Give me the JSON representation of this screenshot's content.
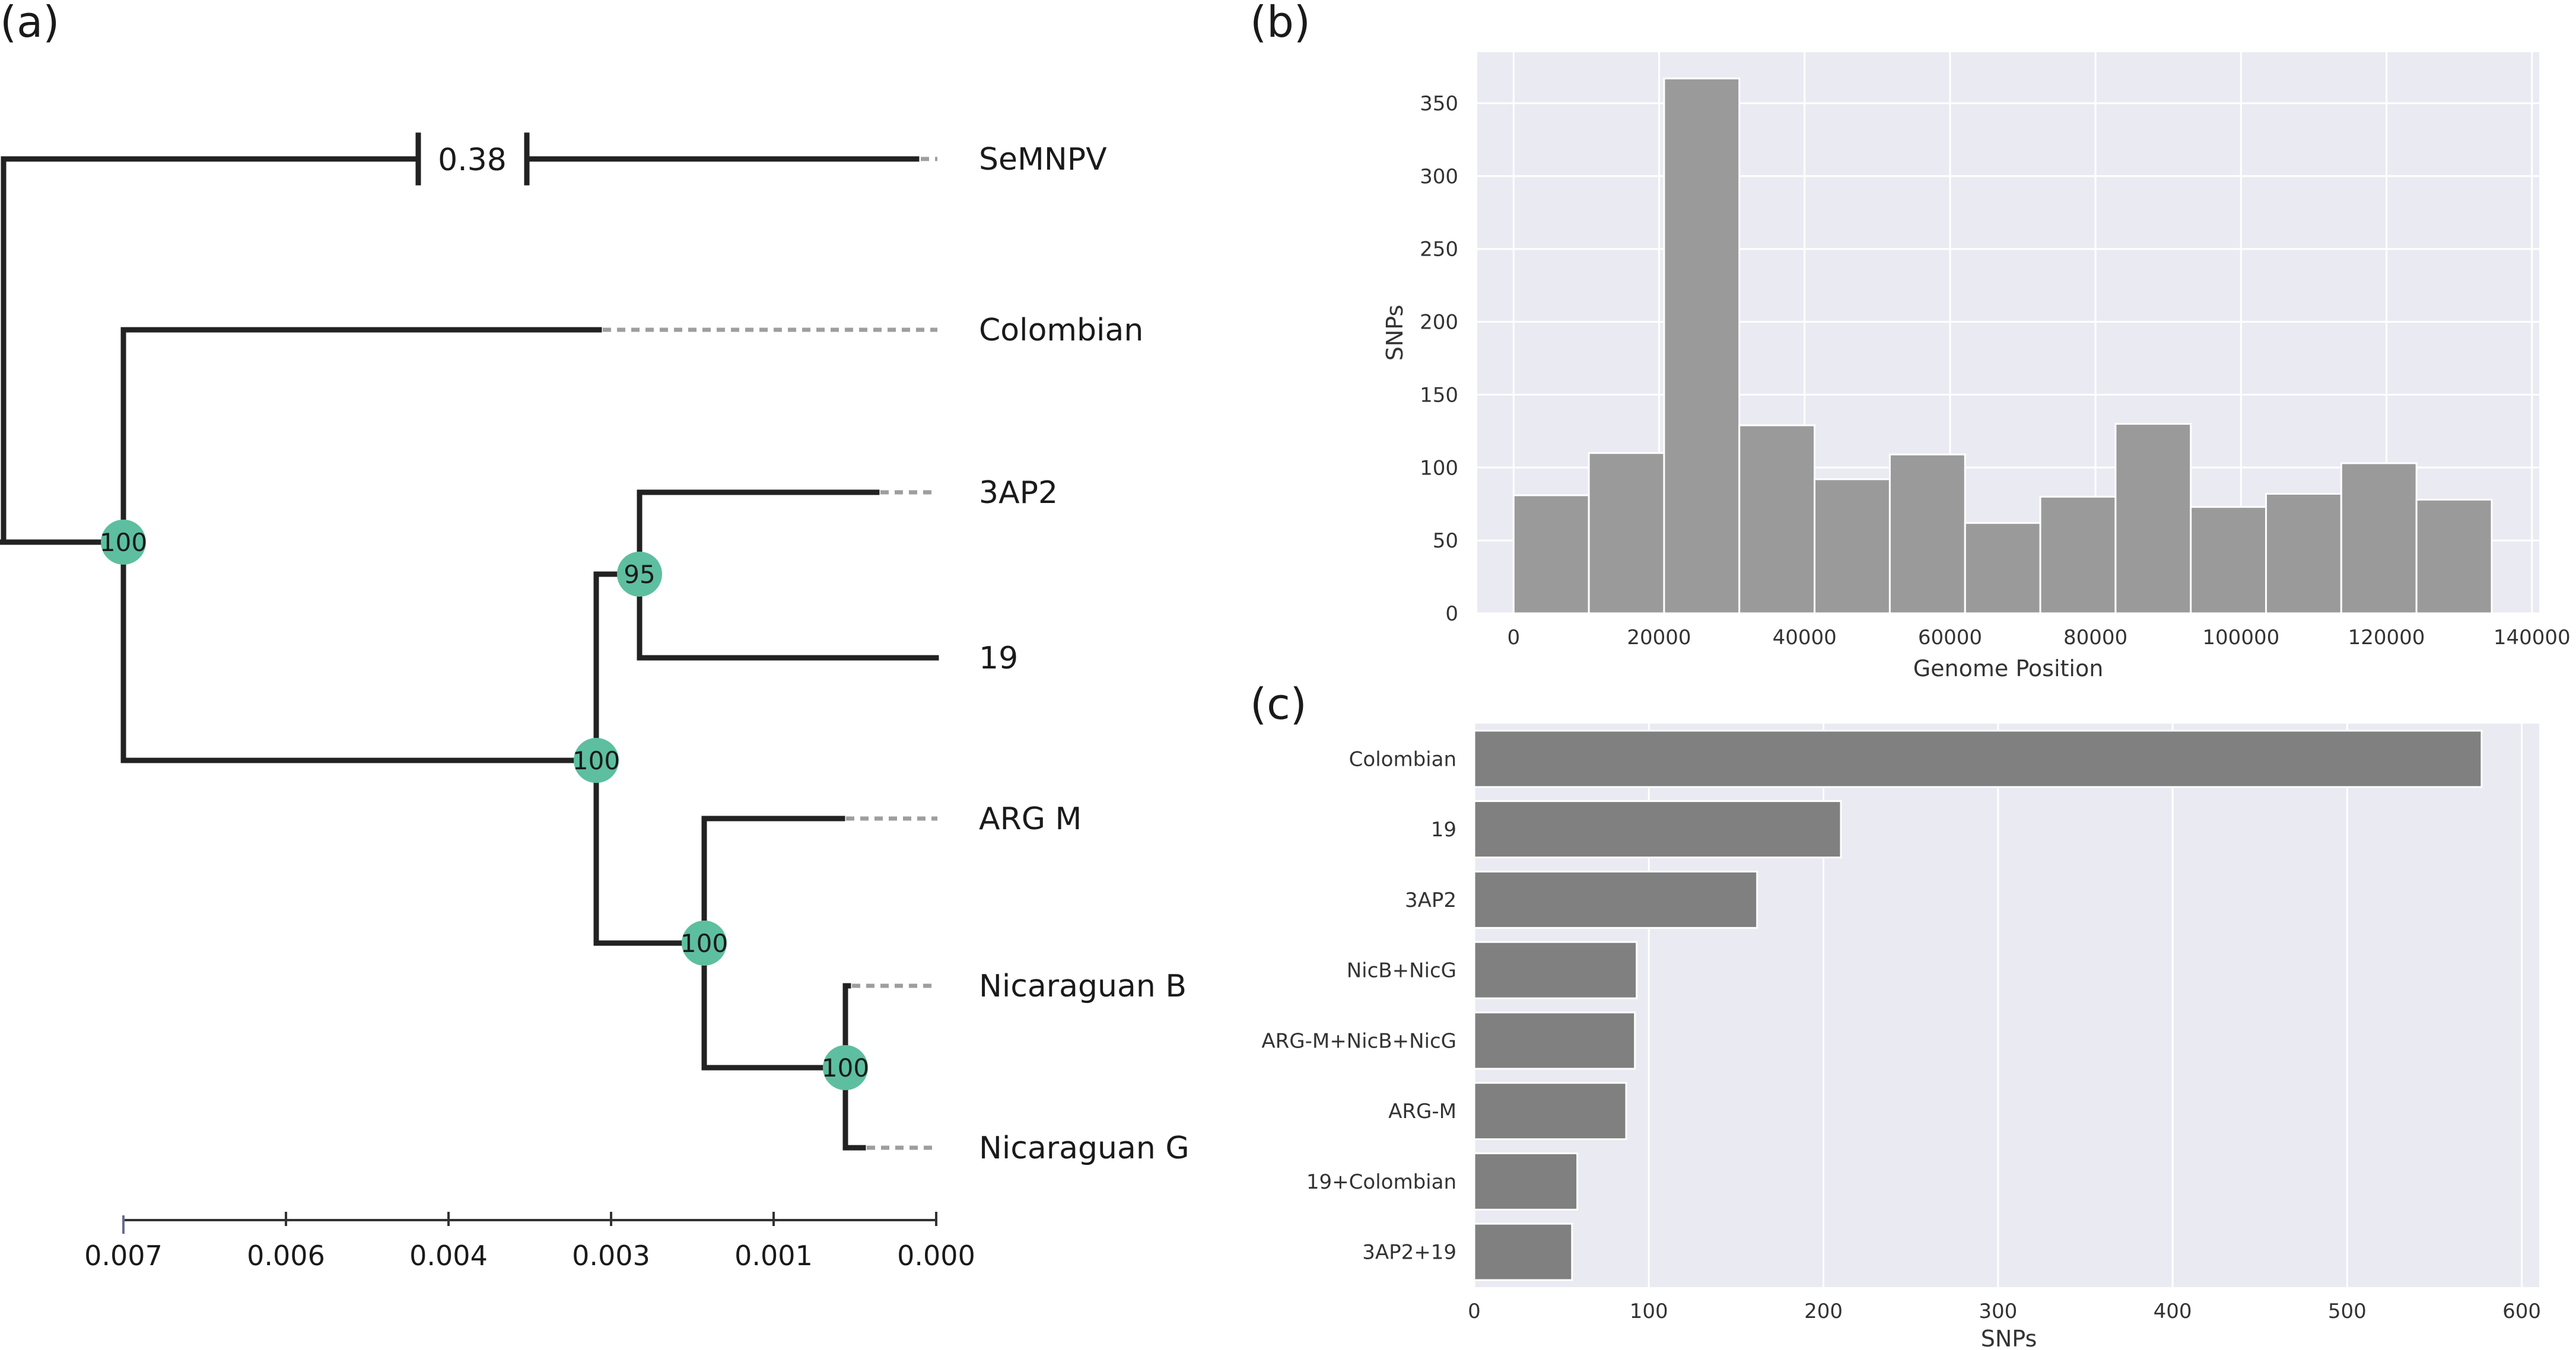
{
  "panels": {
    "a": "(a)",
    "b": "(b)",
    "c": "(c)"
  },
  "colors": {
    "node": "#5dbf9f",
    "branch": "#222222",
    "dashed": "#9e9e9e",
    "plot_bg": "#eaeaf2",
    "hist_bar": "#9a9a9a",
    "hbar": "#808080"
  },
  "chart_data": [
    {
      "panel": "a",
      "type": "tree",
      "title": "",
      "axis": {
        "ticks": [
          "0.007",
          "0.006",
          "0.004",
          "0.003",
          "0.001",
          "0.000"
        ]
      },
      "leaves": [
        "SeMNPV",
        "Colombian",
        "3AP2",
        "19",
        "ARG M",
        "Nicaraguan B",
        "Nicaraguan G"
      ],
      "break_label": "0.38",
      "bootstrap": [
        "100",
        "95",
        "100",
        "100",
        "100"
      ]
    },
    {
      "panel": "b",
      "type": "bar",
      "title": "",
      "xlabel": "Genome Position",
      "ylabel": "SNPs",
      "xlim": [
        -5000,
        141000
      ],
      "ylim": [
        0,
        385
      ],
      "xticks": [
        0,
        20000,
        40000,
        60000,
        80000,
        100000,
        120000,
        140000
      ],
      "yticks": [
        0,
        50,
        100,
        150,
        200,
        250,
        300,
        350
      ],
      "bin_edges": [
        0,
        10344,
        20688,
        31032,
        41376,
        51720,
        62064,
        72408,
        82752,
        93096,
        103440,
        113784,
        124128,
        134472
      ],
      "values": [
        81,
        110,
        367,
        129,
        92,
        109,
        62,
        80,
        130,
        73,
        82,
        103,
        78
      ]
    },
    {
      "panel": "c",
      "type": "bar",
      "orientation": "horizontal",
      "title": "",
      "xlabel": "SNPs",
      "ylabel": "",
      "xlim": [
        0,
        610
      ],
      "xticks": [
        0,
        100,
        200,
        300,
        400,
        500,
        600
      ],
      "categories": [
        "Colombian",
        "19",
        "3AP2",
        "NicB+NicG",
        "ARG-M+NicB+NicG",
        "ARG-M",
        "19+Colombian",
        "3AP2+19"
      ],
      "values": [
        577,
        210,
        162,
        93,
        92,
        87,
        59,
        56
      ]
    }
  ]
}
